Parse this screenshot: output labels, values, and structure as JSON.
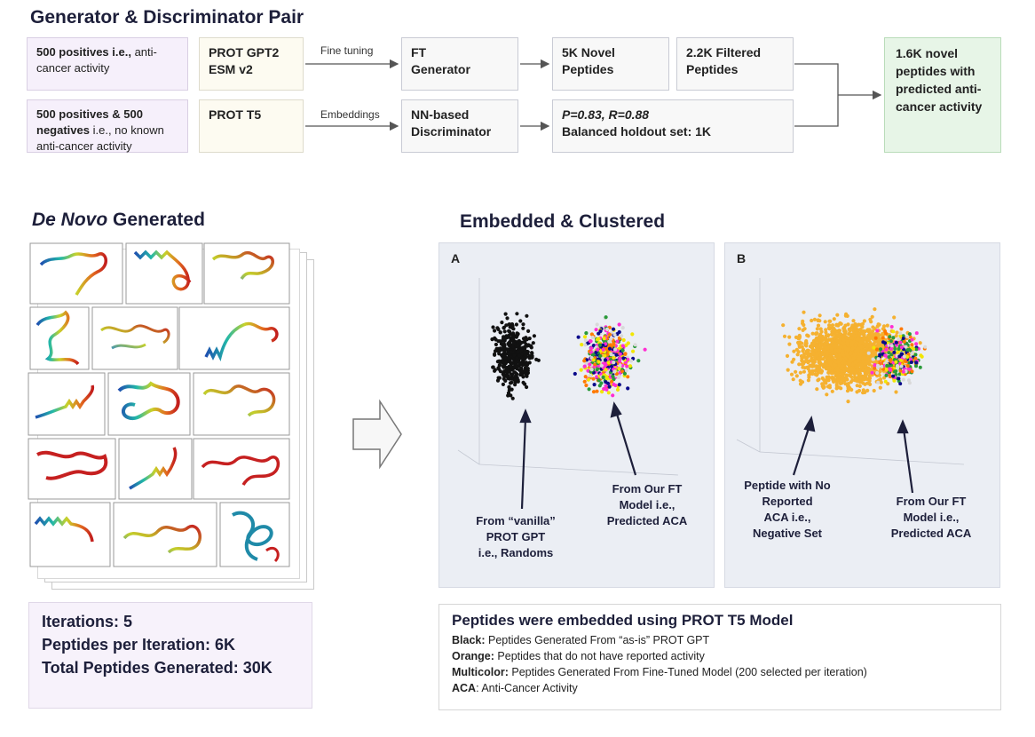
{
  "pipeline": {
    "title": "Generator & Discriminator Pair",
    "gen_input": {
      "bold": "500 positives i.e.,",
      "rest": " anti-cancer activity"
    },
    "gen_model": [
      "PROT GPT2",
      "ESM v2"
    ],
    "gen_edge": "Fine tuning",
    "gen_node": [
      "FT",
      "Generator"
    ],
    "novel": [
      "5K Novel",
      "Peptides"
    ],
    "filtered": [
      "2.2K Filtered",
      "Peptides"
    ],
    "disc_input": {
      "bold": "500 positives & 500 negatives",
      "rest": " i.e., no known anti-cancer activity"
    },
    "disc_model": "PROT T5",
    "disc_edge": "Embeddings",
    "disc_node": [
      "NN-based",
      "Discriminator"
    ],
    "metrics": [
      "P=0.83, R=0.88",
      "Balanced holdout set: 1K"
    ],
    "output": "1.6K novel peptides with predicted anti-cancer activity"
  },
  "denovo": {
    "title_italic": "De Novo",
    "title_rest": " Generated"
  },
  "clustered": {
    "title": "Embedded & Clustered",
    "panel_a": {
      "letter": "A",
      "annot_left": [
        "From “vanilla”",
        "PROT GPT",
        "i.e., Randoms"
      ],
      "annot_right": [
        "From Our FT",
        "Model i.e.,",
        "Predicted ACA"
      ]
    },
    "panel_b": {
      "letter": "B",
      "annot_left": [
        "Peptide with No",
        "Reported",
        "ACA i.e.,",
        "Negative Set"
      ],
      "annot_right": [
        "From Our FT",
        "Model i.e.,",
        "Predicted ACA"
      ]
    }
  },
  "stats": {
    "iterations": "Iterations: 5",
    "per_iteration": "Peptides per Iteration: 6K",
    "total": "Total Peptides Generated: 30K"
  },
  "legend": {
    "title": "Peptides were embedded using PROT T5 Model",
    "items": [
      {
        "key": "Black:",
        "text": " Peptides Generated From “as-is” PROT GPT"
      },
      {
        "key": "Orange:",
        "text": " Peptides that do not have reported activity"
      },
      {
        "key": "Multicolor:",
        "text": " Peptides Generated From Fine-Tuned Model (200 selected per iteration)"
      },
      {
        "key": "ACA",
        "text": ": Anti-Cancer Activity"
      }
    ]
  },
  "colors": {
    "black_points": "#111111",
    "orange_points": "#f5b130",
    "multicolor": [
      "#ff2fd2",
      "#f2e600",
      "#2a9a3a",
      "#0a0a8a",
      "#ff7a00",
      "#d9d9d9"
    ],
    "output_box": "#e7f5e7"
  }
}
